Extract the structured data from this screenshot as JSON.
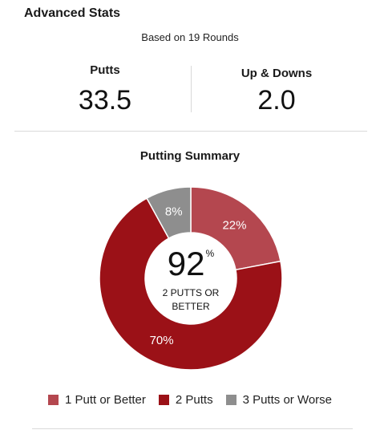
{
  "header": {
    "title": "Advanced Stats",
    "rounds_note": "Based on 19 Rounds"
  },
  "stats": {
    "putts": {
      "label": "Putts",
      "value": "33.5"
    },
    "up_downs": {
      "label": "Up & Downs",
      "value": "2.0"
    }
  },
  "putting_summary": {
    "title": "Putting Summary",
    "center_value": "92",
    "center_unit": "%",
    "center_caption_line1": "2 PUTTS OR",
    "center_caption_line2": "BETTER"
  },
  "chart_data": {
    "type": "pie",
    "title": "Putting Summary",
    "categories": [
      "1 Putt or Better",
      "2 Putts",
      "3 Putts or Worse"
    ],
    "values": [
      22,
      70,
      8
    ],
    "value_labels": [
      "22%",
      "70%",
      "8%"
    ],
    "colors": [
      "#b4474f",
      "#9b1117",
      "#8e8e8e"
    ],
    "donut": true,
    "legend_position": "bottom"
  },
  "legend": [
    {
      "label": "1 Putt or Better",
      "color": "#b4474f"
    },
    {
      "label": "2 Putts",
      "color": "#9b1117"
    },
    {
      "label": "3 Putts or Worse",
      "color": "#8e8e8e"
    }
  ]
}
